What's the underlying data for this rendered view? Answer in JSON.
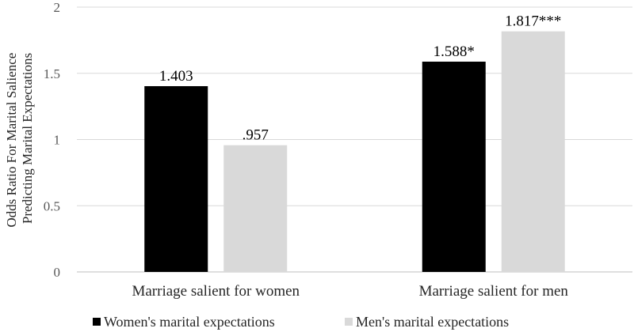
{
  "chart_data": {
    "type": "bar",
    "categories": [
      "Marriage salient for women",
      "Marriage salient for men"
    ],
    "series": [
      {
        "name": "Women's marital expectations",
        "values": [
          1.403,
          1.588
        ],
        "labels": [
          "1.403",
          "1.588*"
        ],
        "color": "#000000"
      },
      {
        "name": "Men's marital expectations",
        "values": [
          0.957,
          1.817
        ],
        "labels": [
          ".957",
          "1.817***"
        ],
        "color": "#d9d9d9"
      }
    ],
    "ylabel_lines": [
      "Odds Ratio For Marital Salience",
      "Predicting Marital Expectations"
    ],
    "xlabel": "",
    "ylim": [
      0,
      2
    ],
    "yticks": [
      0,
      0.5,
      1,
      1.5,
      2
    ],
    "ytick_labels": [
      "0",
      "0.5",
      "1",
      "1.5",
      "2"
    ],
    "grid": true,
    "legend_position": "bottom"
  }
}
